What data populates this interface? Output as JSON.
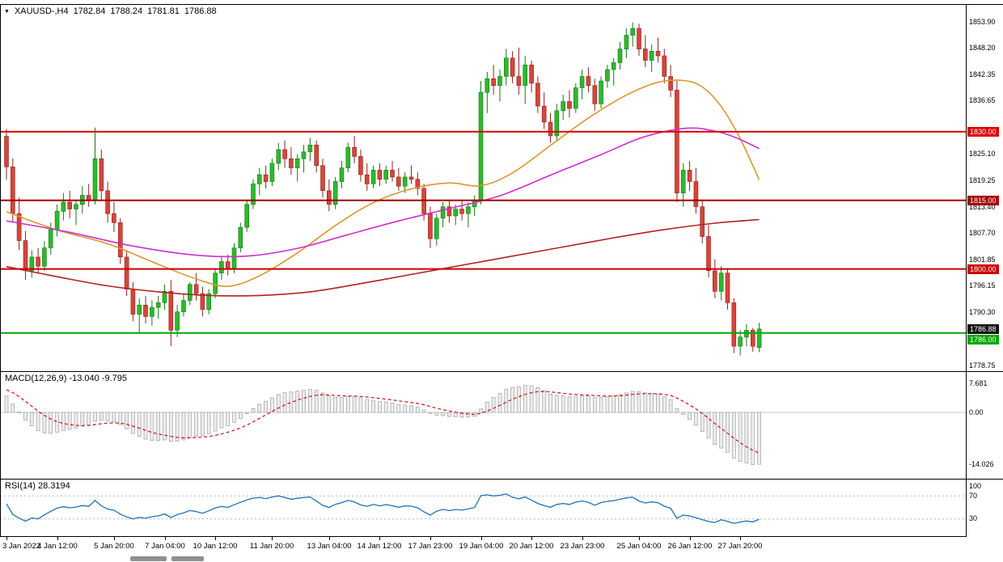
{
  "header": {
    "symbol": "XAUUSD-,H4",
    "open": "1782.84",
    "high": "1788.24",
    "low": "1781.81",
    "close": "1786.88"
  },
  "indicators": {
    "macd_label": "MACD(12,26,9) -13.040 -9.795",
    "rsi_label": "RSI(14) 28.3194",
    "macd_scale": [
      "7.681",
      "0.00",
      "-14.026"
    ],
    "rsi_scale": [
      "100",
      "70",
      "30"
    ]
  },
  "price_scale": {
    "ticks": [
      {
        "label": "1853.90",
        "price": 1853.9
      },
      {
        "label": "1848.20",
        "price": 1848.2
      },
      {
        "label": "1842.35",
        "price": 1842.35
      },
      {
        "label": "1836.65",
        "price": 1836.65
      },
      {
        "label": "1825.10",
        "price": 1825.1
      },
      {
        "label": "1819.25",
        "price": 1819.25
      },
      {
        "label": "1813.40",
        "price": 1813.4
      },
      {
        "label": "1807.70",
        "price": 1807.7
      },
      {
        "label": "1801.85",
        "price": 1801.85
      },
      {
        "label": "1796.15",
        "price": 1796.15
      },
      {
        "label": "1790.30",
        "price": 1790.3
      },
      {
        "label": "1778.75",
        "price": 1778.75
      }
    ],
    "badges": [
      {
        "label": "1830.00",
        "price": 1830.0,
        "color": "#dd0000"
      },
      {
        "label": "1815.00",
        "price": 1815.0,
        "color": "#a30000"
      },
      {
        "label": "1800.00",
        "price": 1800.0,
        "color": "#cc0000"
      },
      {
        "label": "1786.88",
        "price": 1786.88,
        "color": "#111111"
      },
      {
        "label": "1786.00",
        "price": 1786.0,
        "color": "#00a800"
      }
    ]
  },
  "time_axis": [
    {
      "label": "3 Jan 2022",
      "i": 0
    },
    {
      "label": "4 Jan 12:00",
      "i": 8
    },
    {
      "label": "5 Jan 20:00",
      "i": 17
    },
    {
      "label": "7 Jan 04:00",
      "i": 25
    },
    {
      "label": "10 Jan 12:00",
      "i": 33
    },
    {
      "label": "11 Jan 20:00",
      "i": 42
    },
    {
      "label": "13 Jan 04:00",
      "i": 51
    },
    {
      "label": "14 Jan 12:00",
      "i": 59
    },
    {
      "label": "17 Jan 23:00",
      "i": 67
    },
    {
      "label": "19 Jan 04:00",
      "i": 75
    },
    {
      "label": "20 Jan 12:00",
      "i": 83
    },
    {
      "label": "23 Jan 23:00",
      "i": 91
    },
    {
      "label": "25 Jan 04:00",
      "i": 100
    },
    {
      "label": "26 Jan 12:00",
      "i": 108
    },
    {
      "label": "27 Jan 20:00",
      "i": 116
    }
  ],
  "colors": {
    "background": "#ffffff",
    "frame": "#000000",
    "up": "#2eb82e",
    "up_stroke": "#157a15",
    "down": "#d6453a",
    "down_stroke": "#8f221b",
    "macd_fill": "#ededed",
    "macd_stroke": "#9f9f9f",
    "macd_signal": "#cc1111",
    "rsi": "#2470b3"
  },
  "chart_data": {
    "type": "candlestick",
    "symbol": "XAUUSD",
    "timeframe": "H4",
    "title": "XAUUSD-,H4",
    "ohlc_current": [
      1782.84,
      1788.24,
      1781.81,
      1786.88
    ],
    "price_axis": {
      "min": 1778.75,
      "max": 1853.9
    },
    "candles": [
      [
        1829.0,
        1830.6,
        1819.5,
        1822.3
      ],
      [
        1822.3,
        1824.2,
        1810.2,
        1812.1
      ],
      [
        1812.1,
        1815.6,
        1804.1,
        1806.2
      ],
      [
        1806.2,
        1808.3,
        1797.6,
        1799.6
      ],
      [
        1799.6,
        1804.1,
        1798.1,
        1802.6
      ],
      [
        1802.6,
        1804.6,
        1799.1,
        1800.6
      ],
      [
        1800.6,
        1806.1,
        1799.6,
        1804.6
      ],
      [
        1804.6,
        1810.1,
        1803.1,
        1808.6
      ],
      [
        1808.6,
        1814.1,
        1807.1,
        1812.6
      ],
      [
        1812.6,
        1816.6,
        1810.6,
        1814.6
      ],
      [
        1814.6,
        1817.1,
        1811.1,
        1813.1
      ],
      [
        1813.1,
        1815.1,
        1809.6,
        1814.1
      ],
      [
        1814.1,
        1818.1,
        1812.1,
        1816.1
      ],
      [
        1816.1,
        1818.6,
        1813.6,
        1815.1
      ],
      [
        1815.1,
        1830.9,
        1814.1,
        1824.1
      ],
      [
        1824.1,
        1826.1,
        1815.1,
        1817.1
      ],
      [
        1817.1,
        1819.1,
        1810.1,
        1812.1
      ],
      [
        1812.1,
        1814.6,
        1808.1,
        1810.1
      ],
      [
        1810.1,
        1811.1,
        1801.1,
        1802.6
      ],
      [
        1802.6,
        1804.1,
        1794.1,
        1795.6
      ],
      [
        1795.6,
        1797.1,
        1788.6,
        1790.1
      ],
      [
        1790.1,
        1793.6,
        1786.1,
        1792.1
      ],
      [
        1792.1,
        1794.1,
        1788.1,
        1789.6
      ],
      [
        1789.6,
        1793.1,
        1787.6,
        1791.6
      ],
      [
        1791.6,
        1794.1,
        1789.1,
        1792.6
      ],
      [
        1792.6,
        1796.6,
        1791.1,
        1795.1
      ],
      [
        1795.1,
        1797.6,
        1783.1,
        1786.6
      ],
      [
        1786.6,
        1792.1,
        1785.1,
        1790.6
      ],
      [
        1790.6,
        1794.6,
        1789.6,
        1793.1
      ],
      [
        1793.1,
        1797.1,
        1792.1,
        1796.6
      ],
      [
        1796.6,
        1799.1,
        1793.1,
        1794.6
      ],
      [
        1794.6,
        1796.1,
        1789.6,
        1791.1
      ],
      [
        1791.1,
        1795.6,
        1790.1,
        1794.6
      ],
      [
        1794.6,
        1800.1,
        1793.6,
        1799.1
      ],
      [
        1799.1,
        1802.6,
        1797.6,
        1801.6
      ],
      [
        1801.6,
        1803.1,
        1798.6,
        1800.1
      ],
      [
        1800.1,
        1805.6,
        1799.1,
        1804.6
      ],
      [
        1804.6,
        1810.1,
        1803.6,
        1809.1
      ],
      [
        1809.1,
        1815.1,
        1808.1,
        1814.1
      ],
      [
        1814.1,
        1819.6,
        1813.1,
        1818.6
      ],
      [
        1818.6,
        1822.1,
        1816.1,
        1820.6
      ],
      [
        1820.6,
        1822.6,
        1817.6,
        1819.1
      ],
      [
        1819.1,
        1824.1,
        1818.1,
        1823.1
      ],
      [
        1823.1,
        1827.6,
        1821.6,
        1826.1
      ],
      [
        1826.1,
        1828.1,
        1822.1,
        1824.1
      ],
      [
        1824.1,
        1826.6,
        1820.6,
        1822.1
      ],
      [
        1822.1,
        1825.1,
        1819.1,
        1824.1
      ],
      [
        1824.1,
        1827.1,
        1821.1,
        1825.6
      ],
      [
        1825.6,
        1828.6,
        1823.6,
        1827.1
      ],
      [
        1827.1,
        1828.1,
        1821.1,
        1822.6
      ],
      [
        1822.6,
        1824.1,
        1815.6,
        1817.1
      ],
      [
        1817.1,
        1819.6,
        1812.6,
        1814.1
      ],
      [
        1814.1,
        1820.1,
        1813.1,
        1819.1
      ],
      [
        1819.1,
        1823.6,
        1817.6,
        1822.1
      ],
      [
        1822.1,
        1827.6,
        1821.1,
        1826.6
      ],
      [
        1826.6,
        1829.1,
        1823.1,
        1824.6
      ],
      [
        1824.6,
        1826.1,
        1819.1,
        1820.6
      ],
      [
        1820.6,
        1823.1,
        1817.1,
        1818.6
      ],
      [
        1818.6,
        1822.6,
        1817.6,
        1821.6
      ],
      [
        1821.6,
        1823.1,
        1818.1,
        1819.6
      ],
      [
        1819.6,
        1822.6,
        1818.6,
        1821.6
      ],
      [
        1821.6,
        1823.6,
        1819.1,
        1820.1
      ],
      [
        1820.1,
        1822.1,
        1817.1,
        1818.1
      ],
      [
        1818.1,
        1821.1,
        1816.6,
        1820.1
      ],
      [
        1820.1,
        1822.6,
        1818.6,
        1819.6
      ],
      [
        1819.6,
        1821.1,
        1816.1,
        1817.6
      ],
      [
        1817.6,
        1818.6,
        1810.6,
        1812.1
      ],
      [
        1812.1,
        1813.6,
        1804.6,
        1806.6
      ],
      [
        1806.6,
        1812.1,
        1805.1,
        1811.1
      ],
      [
        1811.1,
        1814.6,
        1809.1,
        1813.6
      ],
      [
        1813.6,
        1815.1,
        1810.1,
        1811.6
      ],
      [
        1811.6,
        1814.1,
        1809.6,
        1813.1
      ],
      [
        1813.1,
        1815.1,
        1810.6,
        1812.1
      ],
      [
        1812.1,
        1814.6,
        1809.1,
        1813.6
      ],
      [
        1813.6,
        1816.1,
        1811.6,
        1815.1
      ],
      [
        1815.1,
        1841.1,
        1814.1,
        1838.6
      ],
      [
        1838.6,
        1843.1,
        1834.1,
        1841.6
      ],
      [
        1841.6,
        1844.6,
        1838.1,
        1840.1
      ],
      [
        1840.1,
        1843.6,
        1836.6,
        1842.1
      ],
      [
        1842.1,
        1848.1,
        1840.1,
        1846.1
      ],
      [
        1846.1,
        1847.6,
        1840.6,
        1842.1
      ],
      [
        1842.1,
        1848.4,
        1838.1,
        1840.1
      ],
      [
        1840.1,
        1846.6,
        1836.1,
        1844.6
      ],
      [
        1844.6,
        1845.6,
        1838.6,
        1840.6
      ],
      [
        1840.6,
        1842.1,
        1834.1,
        1835.6
      ],
      [
        1835.6,
        1838.6,
        1830.6,
        1832.1
      ],
      [
        1832.1,
        1834.1,
        1827.6,
        1829.1
      ],
      [
        1829.1,
        1836.1,
        1828.1,
        1834.6
      ],
      [
        1834.6,
        1838.1,
        1832.6,
        1836.6
      ],
      [
        1836.6,
        1839.1,
        1833.1,
        1835.1
      ],
      [
        1835.1,
        1840.6,
        1834.1,
        1839.6
      ],
      [
        1839.6,
        1843.6,
        1837.1,
        1842.1
      ],
      [
        1842.1,
        1844.1,
        1838.6,
        1840.1
      ],
      [
        1840.1,
        1841.6,
        1834.6,
        1836.1
      ],
      [
        1836.1,
        1842.1,
        1835.1,
        1841.1
      ],
      [
        1841.1,
        1844.6,
        1839.6,
        1843.6
      ],
      [
        1843.6,
        1846.1,
        1840.1,
        1845.1
      ],
      [
        1845.1,
        1849.6,
        1843.6,
        1848.1
      ],
      [
        1848.1,
        1852.6,
        1846.1,
        1851.1
      ],
      [
        1851.1,
        1853.9,
        1848.6,
        1852.6
      ],
      [
        1852.6,
        1853.6,
        1846.6,
        1848.1
      ],
      [
        1848.1,
        1851.1,
        1844.1,
        1845.6
      ],
      [
        1845.6,
        1849.1,
        1843.1,
        1847.6
      ],
      [
        1847.6,
        1850.6,
        1845.1,
        1846.6
      ],
      [
        1846.6,
        1848.1,
        1840.6,
        1842.1
      ],
      [
        1842.1,
        1844.6,
        1837.6,
        1839.1
      ],
      [
        1839.1,
        1841.1,
        1814.6,
        1816.6
      ],
      [
        1816.6,
        1823.1,
        1813.6,
        1821.6
      ],
      [
        1821.6,
        1823.6,
        1817.1,
        1819.1
      ],
      [
        1819.1,
        1822.1,
        1812.1,
        1813.6
      ],
      [
        1813.6,
        1815.1,
        1805.6,
        1807.1
      ],
      [
        1807.1,
        1809.6,
        1798.1,
        1799.6
      ],
      [
        1799.6,
        1802.1,
        1793.6,
        1795.1
      ],
      [
        1795.1,
        1800.6,
        1793.1,
        1799.1
      ],
      [
        1799.1,
        1800.1,
        1791.1,
        1792.6
      ],
      [
        1792.6,
        1793.6,
        1781.6,
        1783.1
      ],
      [
        1783.1,
        1786.6,
        1781.1,
        1785.1
      ],
      [
        1785.1,
        1787.9,
        1783.1,
        1786.6
      ],
      [
        1786.6,
        1787.1,
        1781.9,
        1783.1
      ],
      [
        1782.84,
        1788.24,
        1781.81,
        1786.88
      ]
    ],
    "hlines": [
      {
        "label": "1830.00",
        "price": 1830.0,
        "color": "#dd0000",
        "width": 2
      },
      {
        "label": "1815.00",
        "price": 1815.0,
        "color": "#a30000",
        "width": 2
      },
      {
        "label": "1800.00",
        "price": 1800.0,
        "color": "#cc0000",
        "width": 2
      },
      {
        "label": "1786.00",
        "price": 1786.0,
        "color": "#00a800",
        "width": 2
      }
    ],
    "moving_averages": [
      {
        "name": "ma-fast-orange",
        "color": "#d9982f",
        "points": [
          [
            0,
            1812.5
          ],
          [
            8,
            1808.5
          ],
          [
            16,
            1805.5
          ],
          [
            24,
            1801.0
          ],
          [
            30,
            1797.8
          ],
          [
            35,
            1796.2
          ],
          [
            40,
            1798.5
          ],
          [
            46,
            1803.5
          ],
          [
            52,
            1809.5
          ],
          [
            58,
            1814.5
          ],
          [
            64,
            1817.5
          ],
          [
            70,
            1818.8
          ],
          [
            75,
            1818.2
          ],
          [
            80,
            1821.0
          ],
          [
            86,
            1827.0
          ],
          [
            92,
            1833.0
          ],
          [
            98,
            1838.0
          ],
          [
            103,
            1840.8
          ],
          [
            107,
            1841.2
          ],
          [
            110,
            1839.8
          ],
          [
            113,
            1835.5
          ],
          [
            116,
            1828.5
          ],
          [
            119,
            1819.5
          ]
        ]
      },
      {
        "name": "ma-mid-magenta",
        "color": "#cc2fcc",
        "points": [
          [
            0,
            1810.5
          ],
          [
            10,
            1808.0
          ],
          [
            20,
            1805.0
          ],
          [
            30,
            1803.0
          ],
          [
            38,
            1802.8
          ],
          [
            46,
            1804.5
          ],
          [
            54,
            1807.5
          ],
          [
            62,
            1810.5
          ],
          [
            70,
            1813.2
          ],
          [
            78,
            1816.0
          ],
          [
            86,
            1820.5
          ],
          [
            94,
            1825.0
          ],
          [
            100,
            1828.5
          ],
          [
            105,
            1830.3
          ],
          [
            109,
            1830.8
          ],
          [
            113,
            1829.8
          ],
          [
            116,
            1828.3
          ],
          [
            119,
            1826.3
          ]
        ]
      },
      {
        "name": "ma-slow-darkred",
        "color": "#b22222",
        "points": [
          [
            0,
            1800.5
          ],
          [
            8,
            1798.3
          ],
          [
            16,
            1796.3
          ],
          [
            24,
            1795.0
          ],
          [
            32,
            1794.2
          ],
          [
            40,
            1794.2
          ],
          [
            48,
            1795.0
          ],
          [
            56,
            1796.8
          ],
          [
            64,
            1798.8
          ],
          [
            72,
            1800.8
          ],
          [
            80,
            1802.8
          ],
          [
            88,
            1804.8
          ],
          [
            96,
            1806.8
          ],
          [
            104,
            1808.6
          ],
          [
            112,
            1810.0
          ],
          [
            119,
            1810.8
          ]
        ]
      }
    ],
    "macd": {
      "params": [
        12,
        26,
        9
      ],
      "value": -13.04,
      "signal": -9.795,
      "scale_max": 7.681,
      "scale_min": -14.026
    },
    "rsi": {
      "period": 14,
      "value": 28.3194,
      "levels": [
        100,
        70,
        30
      ]
    }
  }
}
